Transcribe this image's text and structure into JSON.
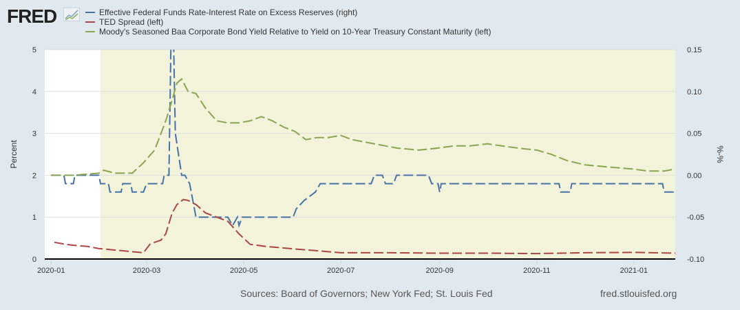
{
  "logo": {
    "text": "FRED"
  },
  "colors": {
    "blue": "#4572a7",
    "red": "#aa4643",
    "green": "#89a54e",
    "recession": "#f3f3db",
    "grid": "#dddddd"
  },
  "chart_data": {
    "type": "line",
    "legend_placement": "top-left",
    "series": [
      {
        "name": "Effective Federal Funds Rate-Interest Rate on Excess Reserves (right)",
        "axis": "right",
        "color": "#4572a7",
        "points": [
          [
            "2020-01-01",
            0.0
          ],
          [
            "2020-01-09",
            0.0
          ],
          [
            "2020-01-10",
            -0.01
          ],
          [
            "2020-01-15",
            -0.01
          ],
          [
            "2020-01-16",
            0.0
          ],
          [
            "2020-01-31",
            0.0
          ],
          [
            "2020-02-01",
            -0.01
          ],
          [
            "2020-02-06",
            -0.01
          ],
          [
            "2020-02-07",
            -0.02
          ],
          [
            "2020-02-14",
            -0.02
          ],
          [
            "2020-02-15",
            -0.01
          ],
          [
            "2020-02-20",
            -0.01
          ],
          [
            "2020-02-21",
            -0.02
          ],
          [
            "2020-02-28",
            -0.02
          ],
          [
            "2020-03-01",
            -0.01
          ],
          [
            "2020-03-11",
            -0.01
          ],
          [
            "2020-03-12",
            0.0
          ],
          [
            "2020-03-15",
            0.0
          ],
          [
            "2020-03-17",
            0.25
          ],
          [
            "2020-03-19",
            0.05
          ],
          [
            "2020-03-23",
            0.0
          ],
          [
            "2020-03-25",
            0.0
          ],
          [
            "2020-03-28",
            -0.01
          ],
          [
            "2020-04-01",
            -0.05
          ],
          [
            "2020-04-21",
            -0.05
          ],
          [
            "2020-04-24",
            -0.06
          ],
          [
            "2020-04-27",
            -0.05
          ],
          [
            "2020-04-28",
            -0.06
          ],
          [
            "2020-04-30",
            -0.05
          ],
          [
            "2020-06-01",
            -0.05
          ],
          [
            "2020-06-03",
            -0.04
          ],
          [
            "2020-06-08",
            -0.03
          ],
          [
            "2020-06-15",
            -0.02
          ],
          [
            "2020-06-18",
            -0.01
          ],
          [
            "2020-07-20",
            -0.01
          ],
          [
            "2020-07-22",
            0.0
          ],
          [
            "2020-07-27",
            0.0
          ],
          [
            "2020-07-29",
            -0.01
          ],
          [
            "2020-08-03",
            -0.01
          ],
          [
            "2020-08-05",
            0.0
          ],
          [
            "2020-08-25",
            0.0
          ],
          [
            "2020-08-27",
            -0.01
          ],
          [
            "2020-08-31",
            -0.01
          ],
          [
            "2020-09-01",
            -0.02
          ],
          [
            "2020-09-02",
            -0.01
          ],
          [
            "2020-11-15",
            -0.01
          ],
          [
            "2020-11-16",
            -0.02
          ],
          [
            "2020-11-22",
            -0.02
          ],
          [
            "2020-11-23",
            -0.01
          ],
          [
            "2021-01-19",
            -0.01
          ],
          [
            "2021-01-20",
            -0.02
          ],
          [
            "2021-01-27",
            -0.02
          ]
        ]
      },
      {
        "name": "TED Spread (left)",
        "axis": "left",
        "color": "#aa4643",
        "points": [
          [
            "2020-01-03",
            0.4
          ],
          [
            "2020-01-10",
            0.35
          ],
          [
            "2020-01-17",
            0.32
          ],
          [
            "2020-01-24",
            0.3
          ],
          [
            "2020-01-31",
            0.25
          ],
          [
            "2020-02-14",
            0.2
          ],
          [
            "2020-02-28",
            0.15
          ],
          [
            "2020-03-03",
            0.35
          ],
          [
            "2020-03-06",
            0.4
          ],
          [
            "2020-03-10",
            0.45
          ],
          [
            "2020-03-13",
            0.6
          ],
          [
            "2020-03-17",
            1.1
          ],
          [
            "2020-03-20",
            1.3
          ],
          [
            "2020-03-24",
            1.42
          ],
          [
            "2020-03-27",
            1.4
          ],
          [
            "2020-04-01",
            1.3
          ],
          [
            "2020-04-07",
            1.1
          ],
          [
            "2020-04-14",
            1.0
          ],
          [
            "2020-04-21",
            0.9
          ],
          [
            "2020-04-28",
            0.6
          ],
          [
            "2020-05-05",
            0.35
          ],
          [
            "2020-05-15",
            0.3
          ],
          [
            "2020-05-30",
            0.25
          ],
          [
            "2020-06-15",
            0.2
          ],
          [
            "2020-07-01",
            0.15
          ],
          [
            "2020-08-01",
            0.15
          ],
          [
            "2020-09-01",
            0.14
          ],
          [
            "2020-10-01",
            0.14
          ],
          [
            "2020-11-01",
            0.13
          ],
          [
            "2020-12-01",
            0.15
          ],
          [
            "2021-01-01",
            0.16
          ],
          [
            "2021-01-27",
            0.14
          ]
        ]
      },
      {
        "name": "Moody's Seasoned Baa Corporate Bond Yield Relative to Yield on 10-Year Treasury Constant Maturity (left)",
        "axis": "left",
        "color": "#89a54e",
        "points": [
          [
            "2020-01-01",
            2.0
          ],
          [
            "2020-01-15",
            2.0
          ],
          [
            "2020-01-31",
            2.05
          ],
          [
            "2020-02-03",
            2.12
          ],
          [
            "2020-02-10",
            2.05
          ],
          [
            "2020-02-21",
            2.05
          ],
          [
            "2020-02-28",
            2.3
          ],
          [
            "2020-03-06",
            2.6
          ],
          [
            "2020-03-10",
            3.0
          ],
          [
            "2020-03-13",
            3.3
          ],
          [
            "2020-03-17",
            3.8
          ],
          [
            "2020-03-20",
            4.2
          ],
          [
            "2020-03-23",
            4.3
          ],
          [
            "2020-03-27",
            4.0
          ],
          [
            "2020-04-01",
            3.95
          ],
          [
            "2020-04-07",
            3.6
          ],
          [
            "2020-04-14",
            3.3
          ],
          [
            "2020-04-21",
            3.25
          ],
          [
            "2020-04-28",
            3.25
          ],
          [
            "2020-05-05",
            3.3
          ],
          [
            "2020-05-12",
            3.4
          ],
          [
            "2020-05-19",
            3.3
          ],
          [
            "2020-05-26",
            3.15
          ],
          [
            "2020-06-02",
            3.05
          ],
          [
            "2020-06-09",
            2.85
          ],
          [
            "2020-06-16",
            2.9
          ],
          [
            "2020-06-23",
            2.9
          ],
          [
            "2020-07-01",
            2.95
          ],
          [
            "2020-07-08",
            2.85
          ],
          [
            "2020-07-15",
            2.8
          ],
          [
            "2020-07-29",
            2.7
          ],
          [
            "2020-08-05",
            2.65
          ],
          [
            "2020-08-19",
            2.6
          ],
          [
            "2020-08-31",
            2.65
          ],
          [
            "2020-09-10",
            2.7
          ],
          [
            "2020-09-20",
            2.7
          ],
          [
            "2020-10-01",
            2.75
          ],
          [
            "2020-10-10",
            2.7
          ],
          [
            "2020-10-20",
            2.65
          ],
          [
            "2020-11-01",
            2.6
          ],
          [
            "2020-11-10",
            2.5
          ],
          [
            "2020-11-20",
            2.35
          ],
          [
            "2020-12-01",
            2.25
          ],
          [
            "2020-12-15",
            2.2
          ],
          [
            "2020-12-31",
            2.15
          ],
          [
            "2021-01-10",
            2.1
          ],
          [
            "2021-01-20",
            2.1
          ],
          [
            "2021-01-27",
            2.15
          ]
        ]
      }
    ],
    "recession_shading": [
      "2020-02-01",
      "2021-01-27"
    ],
    "xlim": [
      "2019-12-28",
      "2021-01-27"
    ],
    "x_ticks": [
      [
        "2020-01-01",
        "2020-01"
      ],
      [
        "2020-03-01",
        "2020-03"
      ],
      [
        "2020-05-01",
        "2020-05"
      ],
      [
        "2020-07-01",
        "2020-07"
      ],
      [
        "2020-09-01",
        "2020-09"
      ],
      [
        "2020-11-01",
        "2020-11"
      ],
      [
        "2021-01-01",
        "2021-01"
      ]
    ],
    "left_axis": {
      "label": "Percent",
      "ylim": [
        0,
        5
      ],
      "ticks": [
        "0",
        "1",
        "2",
        "3",
        "4",
        "5"
      ]
    },
    "right_axis": {
      "label": "%-%",
      "ylim": [
        -0.1,
        0.15
      ],
      "ticks": [
        "-0.10",
        "-0.05",
        "0.00",
        "0.05",
        "0.10",
        "0.15"
      ]
    },
    "grid": true
  },
  "footer": {
    "sources": "Sources: Board of Governors; New York Fed; St. Louis Fed",
    "site": "fred.stlouisfed.org"
  }
}
